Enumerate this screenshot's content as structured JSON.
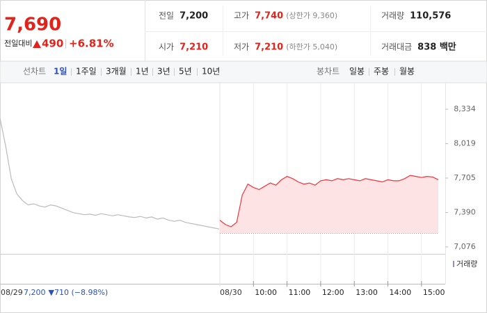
{
  "quote": {
    "price": "7,690",
    "change_label": "전일대비",
    "change": "490",
    "change_rate": "+6.81%"
  },
  "summary": [
    [
      {
        "label": "전일",
        "value": "7,200"
      },
      {
        "label": "고가",
        "value": "7,740",
        "note": "(상한가 9,360)",
        "color": "#e0241b"
      },
      {
        "label": "거래량",
        "value": "110,576"
      }
    ],
    [
      {
        "label": "시가",
        "value": "7,210",
        "color": "#e0241b"
      },
      {
        "label": "저가",
        "value": "7,210",
        "note": "(하한가 5,040)",
        "color": "#e0241b"
      },
      {
        "label": "거래대금",
        "value": "838 백만"
      }
    ]
  ],
  "tabs": {
    "line_label": "선차트",
    "line": [
      "1일",
      "1주일",
      "3개월",
      "1년",
      "3년",
      "5년",
      "10년"
    ],
    "candle_label": "봉차트",
    "candle": [
      "일봉",
      "주봉",
      "월봉"
    ]
  },
  "chart_data": {
    "type": "line",
    "ylim": [
      7076,
      8334
    ],
    "yticks": [
      {
        "value": 8334,
        "label": "8,334"
      },
      {
        "value": 8019,
        "label": "8,019"
      },
      {
        "value": 7705,
        "label": "7,705"
      },
      {
        "value": 7390,
        "label": "7,390"
      },
      {
        "value": 7076,
        "label": "7,076"
      }
    ],
    "xlim": [
      0,
      390
    ],
    "xticks": [
      {
        "value": 60,
        "label": "10:00"
      },
      {
        "value": 120,
        "label": "11:00"
      },
      {
        "value": 180,
        "label": "12:00"
      },
      {
        "value": 240,
        "label": "13:00"
      },
      {
        "value": 300,
        "label": "14:00"
      },
      {
        "value": 360,
        "label": "15:00"
      }
    ],
    "prev_close": 7200,
    "volume_label": "거래량",
    "days": [
      {
        "label": "08/29",
        "color": "#bbbbbb",
        "close": "7,200",
        "change": "▼710 (−8.98%)",
        "values": [
          8250,
          8000,
          7700,
          7560,
          7500,
          7460,
          7470,
          7450,
          7440,
          7460,
          7450,
          7430,
          7410,
          7390,
          7380,
          7370,
          7375,
          7365,
          7380,
          7370,
          7360,
          7370,
          7360,
          7350,
          7345,
          7355,
          7340,
          7350,
          7330,
          7340,
          7320,
          7310,
          7320,
          7300,
          7290,
          7280,
          7270,
          7260,
          7250,
          7240
        ]
      },
      {
        "label": "08/30",
        "color": "#f0333a",
        "fill": "#fde3e3",
        "values": [
          7320,
          7280,
          7260,
          7300,
          7550,
          7650,
          7620,
          7600,
          7630,
          7660,
          7640,
          7690,
          7720,
          7700,
          7670,
          7650,
          7660,
          7640,
          7680,
          7690,
          7680,
          7700,
          7690,
          7700,
          7690,
          7680,
          7700,
          7690,
          7680,
          7670,
          7690,
          7680,
          7680,
          7700,
          7730,
          7720,
          7710,
          7720,
          7715,
          7690
        ]
      }
    ]
  }
}
